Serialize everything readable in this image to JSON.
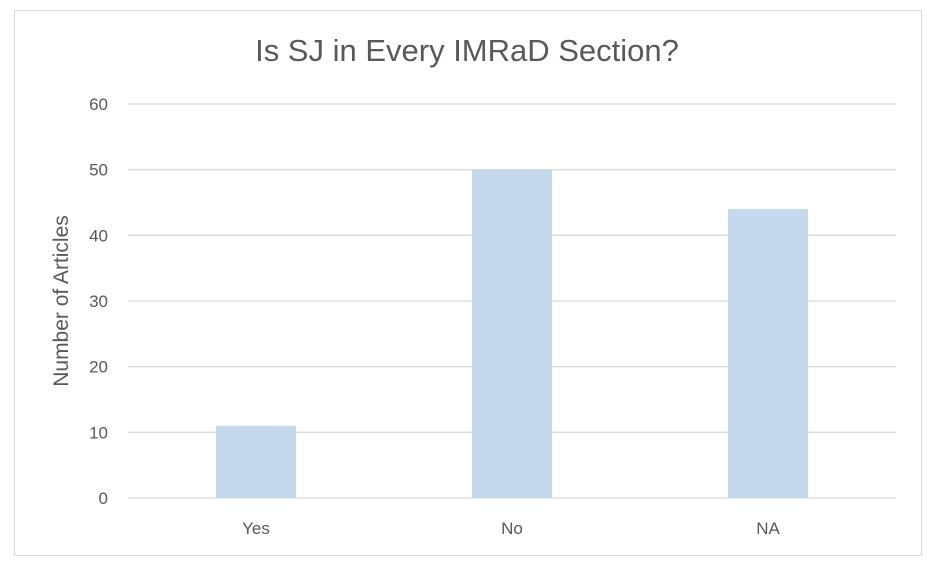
{
  "chart_data": {
    "type": "bar",
    "title": "Is SJ in Every IMRaD Section?",
    "xlabel": "",
    "ylabel": "Number of Articles",
    "categories": [
      "Yes",
      "No",
      "NA"
    ],
    "values": [
      11,
      50,
      44
    ],
    "ylim": [
      0,
      60
    ],
    "yticks": [
      "0",
      "10",
      "20",
      "30",
      "40",
      "50",
      "60"
    ],
    "grid": true,
    "legend": "none",
    "colors": {
      "bar": "#c5d9ee",
      "grid": "#d9d9d9",
      "text": "#595959"
    }
  }
}
